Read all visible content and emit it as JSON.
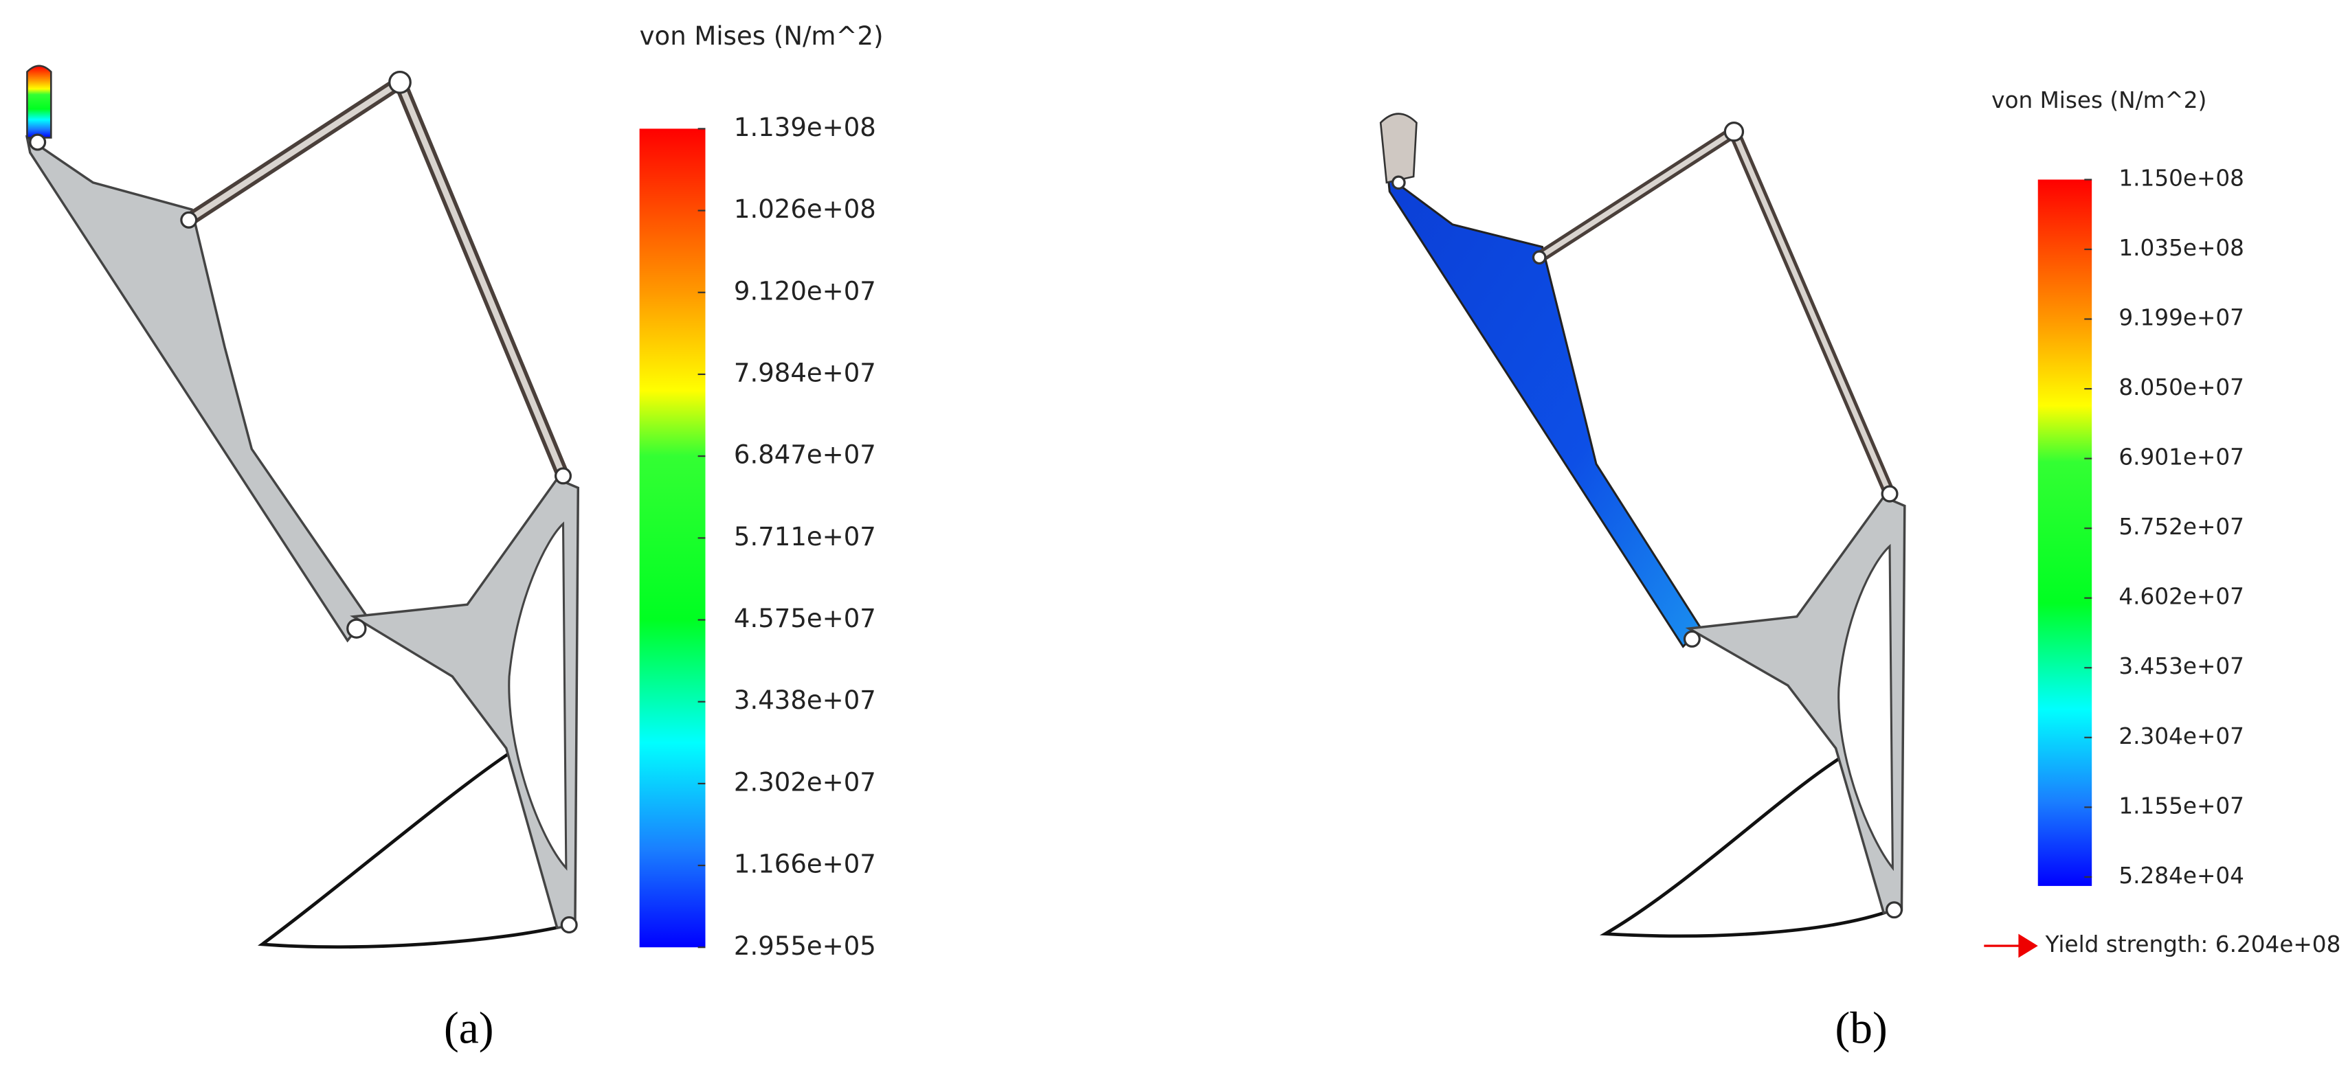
{
  "panels": [
    {
      "label": "(a)",
      "legend": {
        "title": "von Mises (N/m^2)",
        "ticks": [
          "1.139e+08",
          "1.026e+08",
          "9.120e+07",
          "7.984e+07",
          "6.847e+07",
          "5.711e+07",
          "4.575e+07",
          "3.438e+07",
          "2.302e+07",
          "1.166e+07",
          "2.955e+05"
        ]
      }
    },
    {
      "label": "(b)",
      "legend": {
        "title": "von Mises (N/m^2)",
        "ticks": [
          "1.150e+08",
          "1.035e+08",
          "9.199e+07",
          "8.050e+07",
          "6.901e+07",
          "5.752e+07",
          "4.602e+07",
          "3.453e+07",
          "2.304e+07",
          "1.155e+07",
          "5.284e+04"
        ]
      },
      "yield_strength": "Yield strength: 6.204e+08"
    }
  ]
}
